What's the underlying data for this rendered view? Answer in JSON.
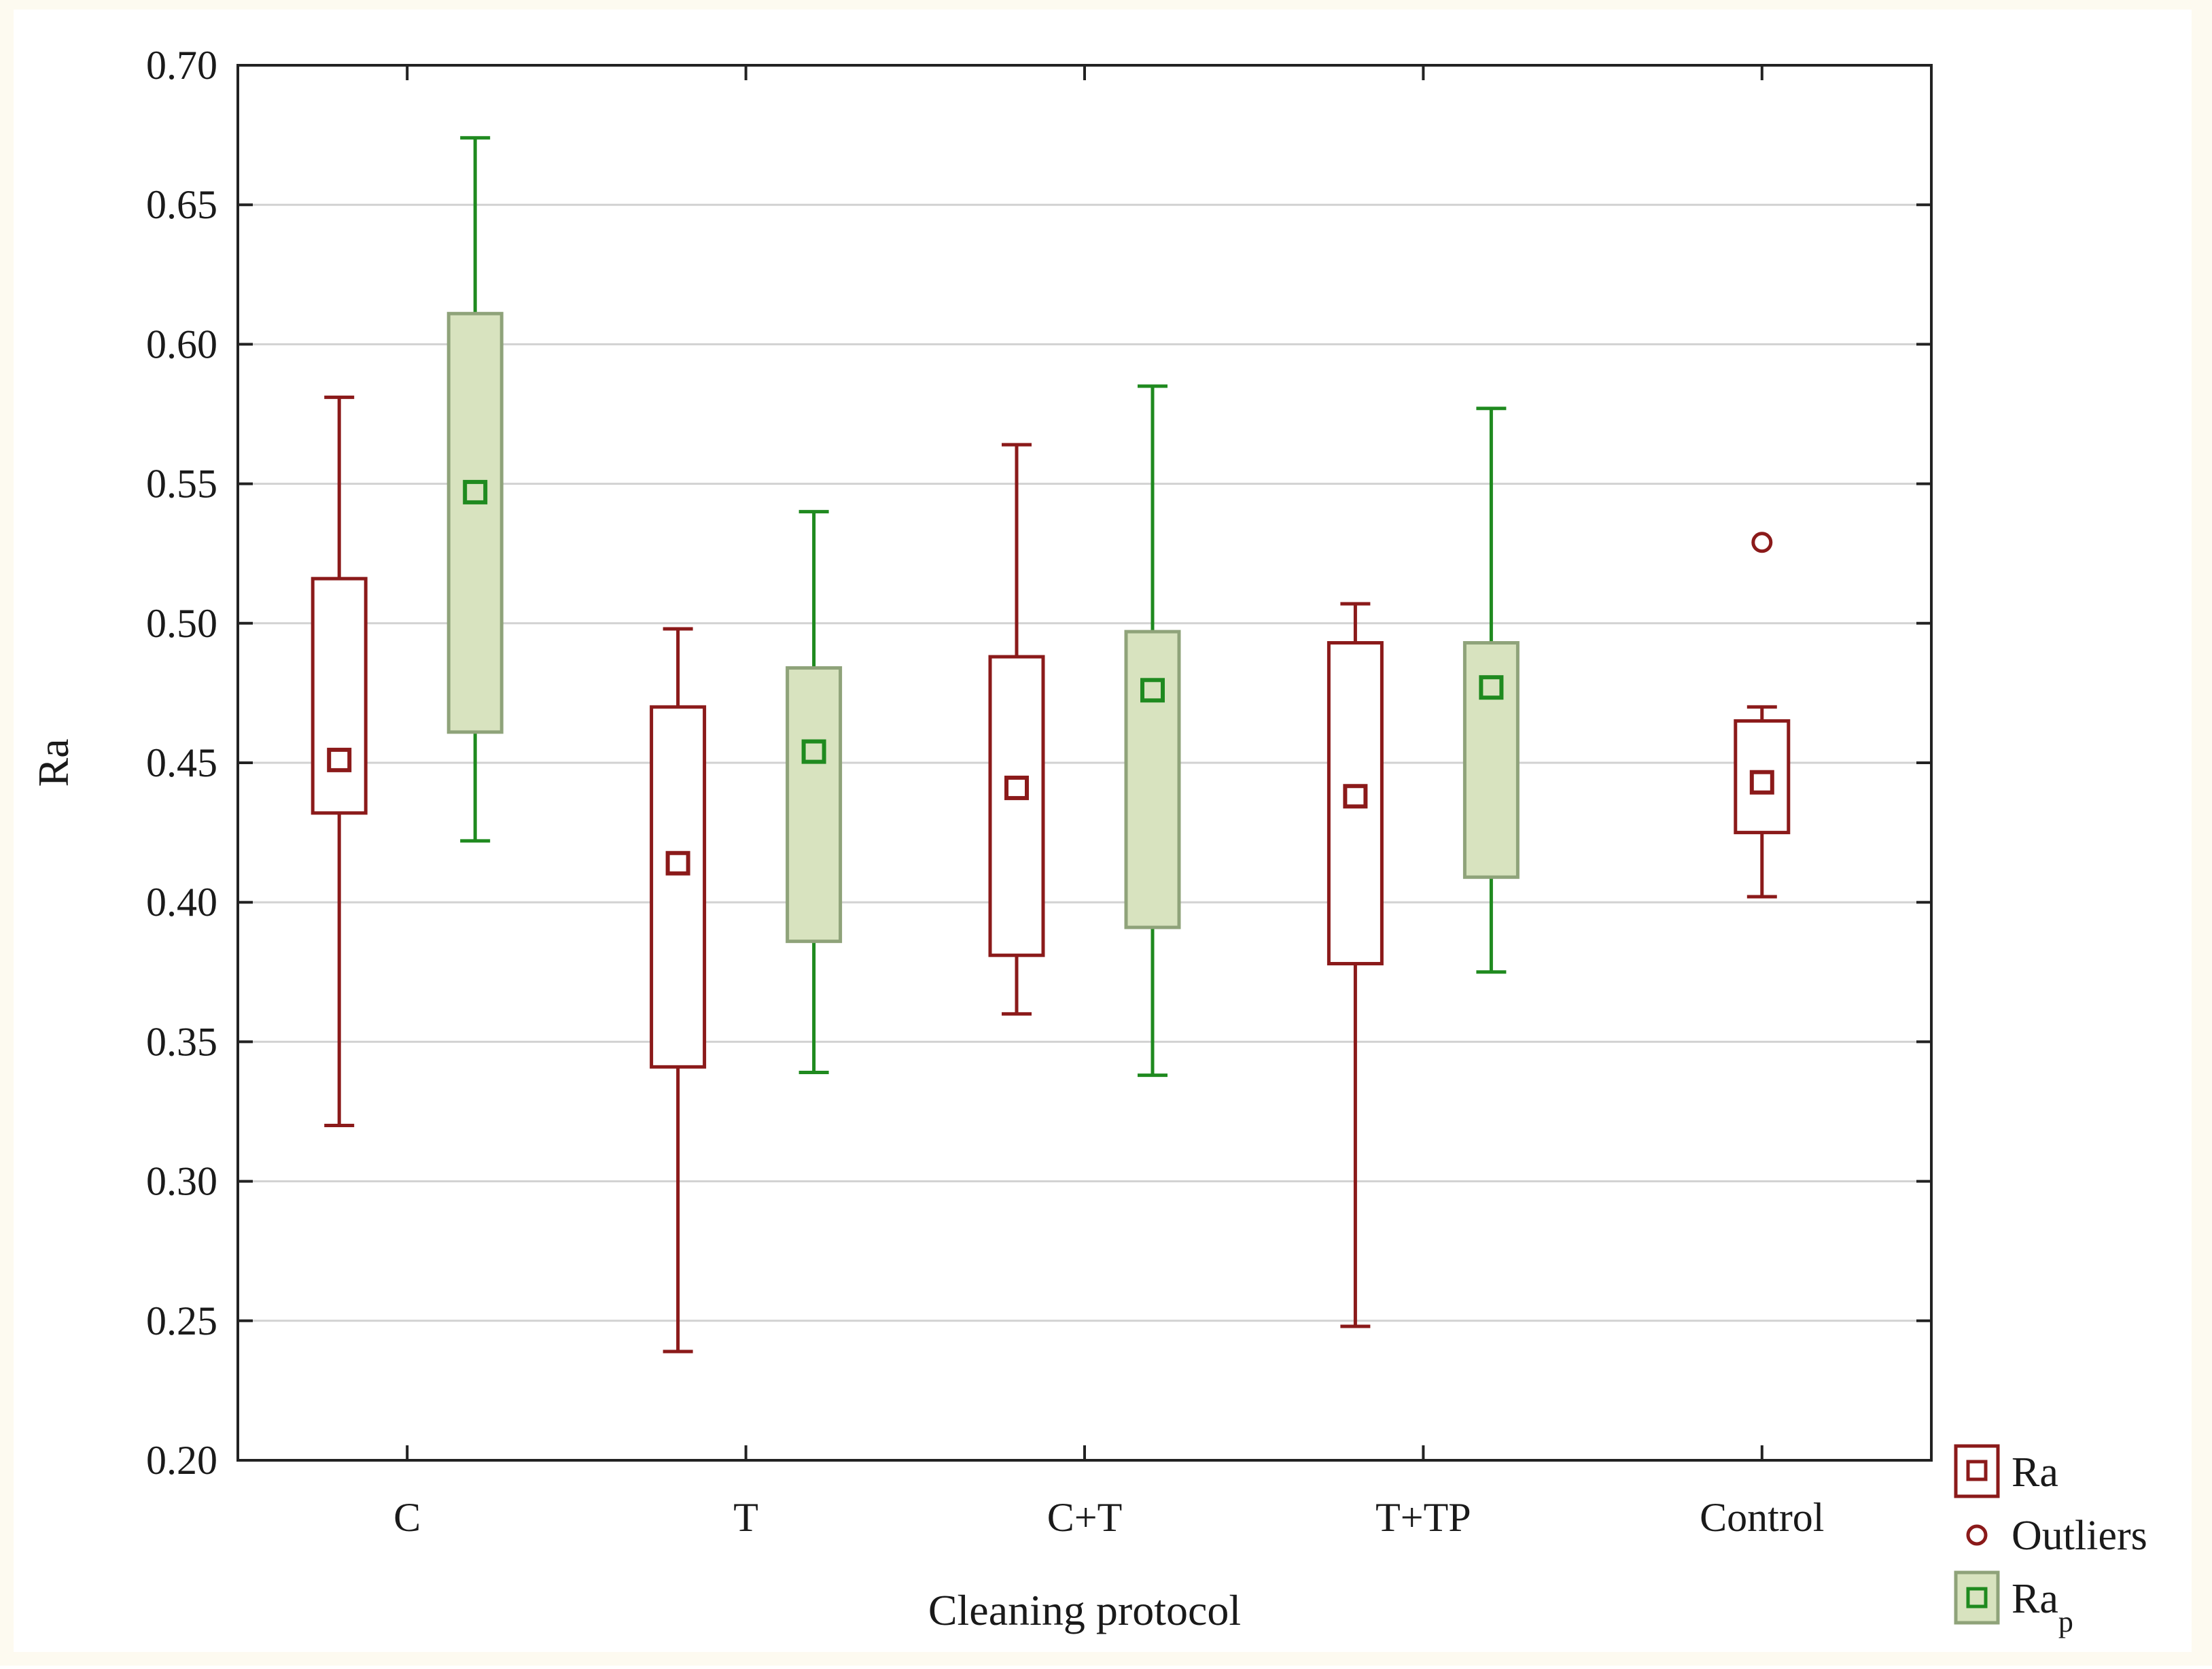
{
  "chart_data": {
    "type": "box",
    "title": "",
    "xlabel": "Cleaning protocol",
    "ylabel": "Ra",
    "ylim": [
      0.2,
      0.7
    ],
    "yticks": [
      "0.20",
      "0.25",
      "0.30",
      "0.35",
      "0.40",
      "0.45",
      "0.50",
      "0.55",
      "0.60",
      "0.65",
      "0.70"
    ],
    "categories": [
      "C",
      "T",
      "C+T",
      "T+TP",
      "Control"
    ],
    "grid": "horizontal",
    "legend_position": "bottom-right",
    "series": [
      {
        "name": "Ra",
        "legend_main": "Ra",
        "legend_sub": "",
        "color": "#8b1a1a",
        "fill": "#ffffff",
        "boxes": [
          {
            "category": "C",
            "min": 0.32,
            "q1": 0.432,
            "median": 0.451,
            "q3": 0.516,
            "max": 0.581
          },
          {
            "category": "T",
            "min": 0.239,
            "q1": 0.341,
            "median": 0.414,
            "q3": 0.47,
            "max": 0.498
          },
          {
            "category": "C+T",
            "min": 0.36,
            "q1": 0.381,
            "median": 0.441,
            "q3": 0.488,
            "max": 0.564
          },
          {
            "category": "T+TP",
            "min": 0.248,
            "q1": 0.378,
            "median": 0.438,
            "q3": 0.493,
            "max": 0.507
          },
          {
            "category": "Control",
            "min": 0.402,
            "q1": 0.425,
            "median": 0.443,
            "q3": 0.465,
            "max": 0.47
          }
        ]
      },
      {
        "name": "Rap",
        "legend_main": "Ra",
        "legend_sub": "p",
        "color": "#1f8a1f",
        "fill": "#d8e3bf",
        "box_stroke": "#8fa37a",
        "boxes": [
          {
            "category": "C",
            "min": 0.422,
            "q1": 0.461,
            "median": 0.547,
            "q3": 0.611,
            "max": 0.674
          },
          {
            "category": "T",
            "min": 0.339,
            "q1": 0.386,
            "median": 0.454,
            "q3": 0.484,
            "max": 0.54
          },
          {
            "category": "C+T",
            "min": 0.338,
            "q1": 0.391,
            "median": 0.476,
            "q3": 0.497,
            "max": 0.585
          },
          {
            "category": "T+TP",
            "min": 0.375,
            "q1": 0.409,
            "median": 0.477,
            "q3": 0.493,
            "max": 0.577
          }
        ]
      }
    ],
    "outliers": {
      "name": "Outliers",
      "color": "#8b1a1a",
      "points": [
        {
          "category": "Control",
          "series": "Ra",
          "value": 0.529
        }
      ]
    }
  }
}
